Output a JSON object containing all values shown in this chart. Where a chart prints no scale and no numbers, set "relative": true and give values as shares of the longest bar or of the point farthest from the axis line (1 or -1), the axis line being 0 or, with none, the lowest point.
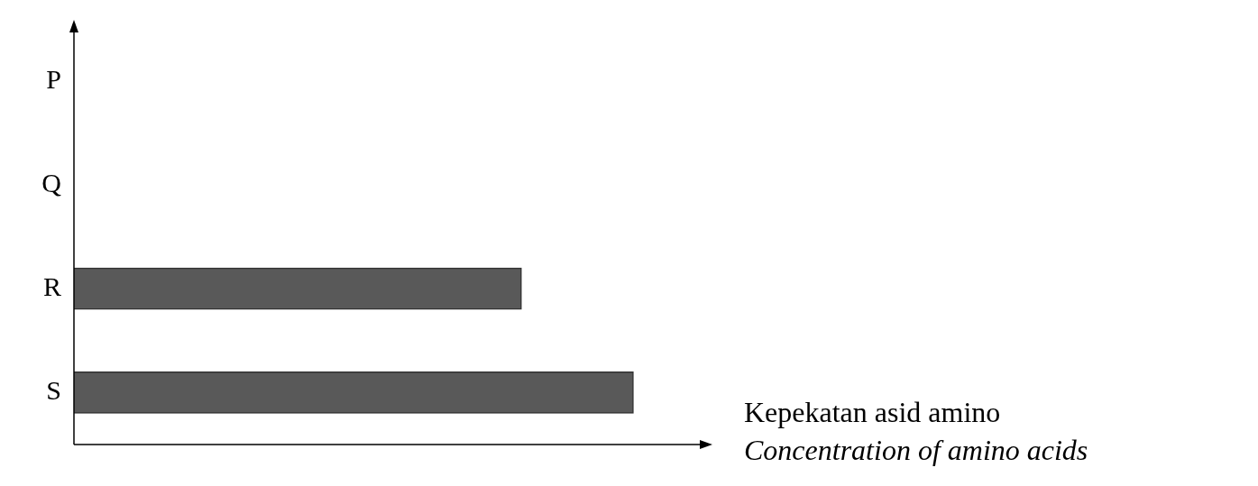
{
  "chart_data": {
    "type": "bar",
    "orientation": "horizontal",
    "relative": true,
    "categories": [
      "P",
      "Q",
      "R",
      "S"
    ],
    "values": [
      0,
      0,
      0.8,
      1
    ],
    "color": "#595959",
    "xlabel": "Kepekatan asid amino\n$^{}$Concentration of amino acids",
    "tick_labels": "y"
  }
}
